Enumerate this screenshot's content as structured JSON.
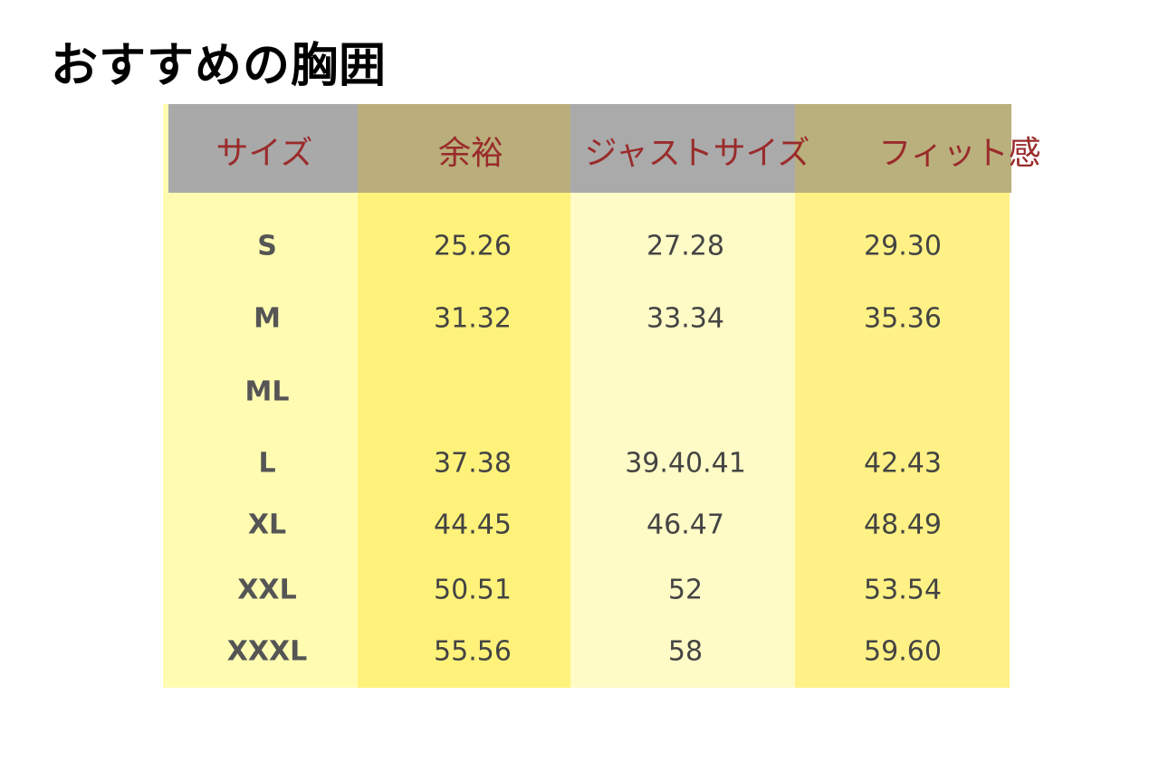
{
  "title": "おすすめの胸囲",
  "table": {
    "header": [
      "サイズ",
      "余裕",
      "ジャストサイズ",
      "フィット感"
    ],
    "rows": [
      [
        "S",
        "25.26",
        "27.28",
        "29.30"
      ],
      [
        "M",
        "31.32",
        "33.34",
        "35.36"
      ],
      [
        "ML"
      ],
      [
        "L",
        "37.38",
        "39.40.41",
        "42.43"
      ],
      [
        "XL",
        "44.45",
        "46.47",
        "48.49"
      ],
      [
        "XXL",
        "50.51",
        "52",
        "53.54"
      ],
      [
        "XXXL",
        "55.56",
        "58",
        "59.60"
      ]
    ]
  }
}
